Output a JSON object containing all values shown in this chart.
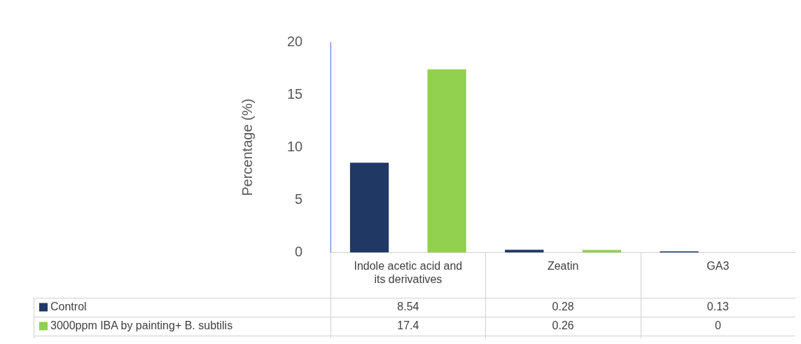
{
  "chart_data": {
    "type": "bar",
    "ylabel": "Percentage (%)",
    "categories": [
      "Indole acetic acid and its derivatives",
      "Zeatin",
      "GA3"
    ],
    "series": [
      {
        "name": "Control",
        "color": "#1f3864",
        "values": [
          8.54,
          0.28,
          0.13
        ]
      },
      {
        "name": "3000ppm IBA by painting+ B. subtilis",
        "color": "#92d050",
        "values": [
          17.4,
          0.26,
          0
        ]
      }
    ],
    "ylim": [
      0,
      20
    ],
    "yticks": [
      0,
      5,
      10,
      15,
      20
    ],
    "grid": false,
    "legend": "bottom",
    "data_labels": true
  }
}
